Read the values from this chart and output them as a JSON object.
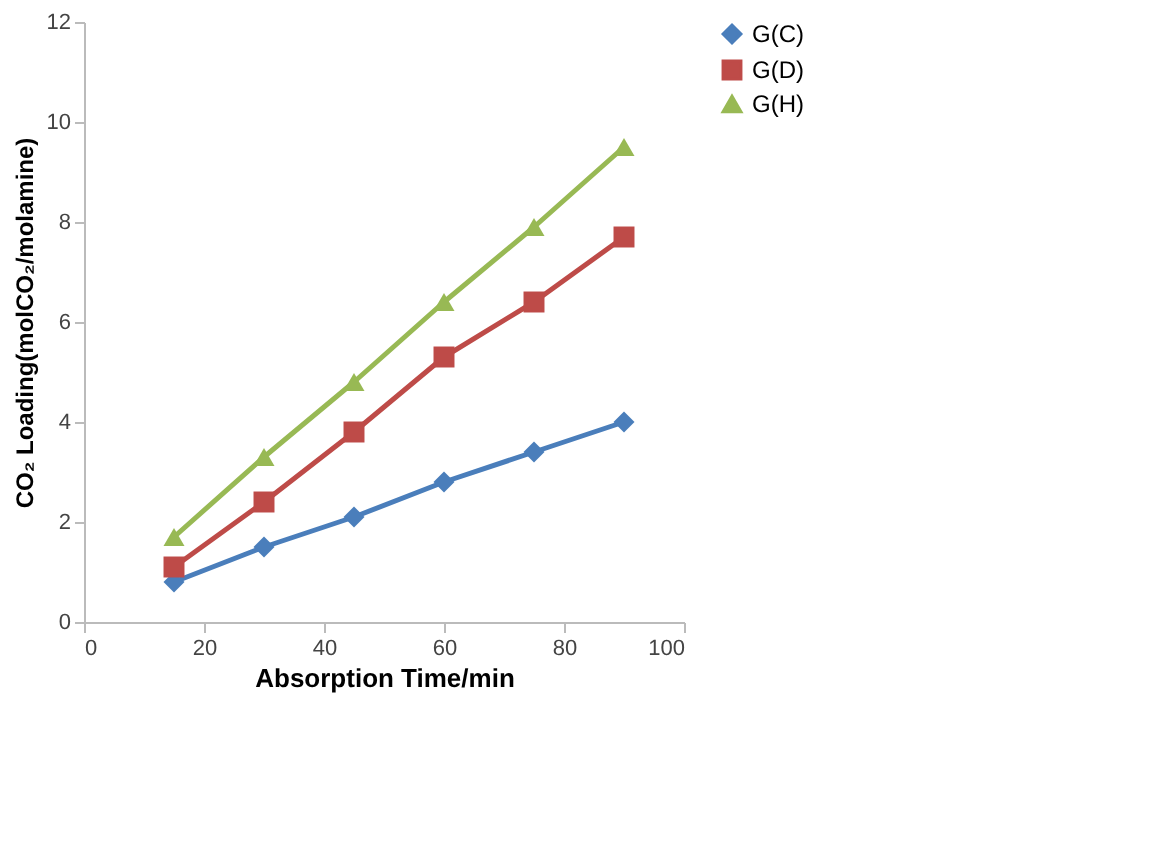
{
  "chart_data": {
    "type": "line",
    "xlabel": "Absorption  Time/min",
    "ylabel": "CO₂ Loading(molCO₂/molamine)",
    "x": [
      15,
      30,
      45,
      60,
      75,
      90
    ],
    "series": [
      {
        "name": "G(C)",
        "color": "#4a7ebb",
        "marker": "diamond",
        "values": [
          0.8,
          1.5,
          2.1,
          2.8,
          3.4,
          4.0
        ]
      },
      {
        "name": "G(D)",
        "color": "#be4b48",
        "marker": "square",
        "values": [
          1.1,
          2.4,
          3.8,
          5.3,
          6.4,
          7.7
        ]
      },
      {
        "name": "G(H)",
        "color": "#98b954",
        "marker": "triangle",
        "values": [
          1.7,
          3.3,
          4.8,
          6.4,
          7.9,
          9.5
        ]
      }
    ],
    "xlim": [
      0,
      100
    ],
    "xticks": [
      0,
      20,
      40,
      60,
      80,
      100
    ],
    "ylim": [
      0,
      12
    ],
    "yticks": [
      0,
      2,
      4,
      6,
      8,
      10,
      12
    ],
    "grid": false,
    "legend": "right",
    "line_style": "solid"
  }
}
